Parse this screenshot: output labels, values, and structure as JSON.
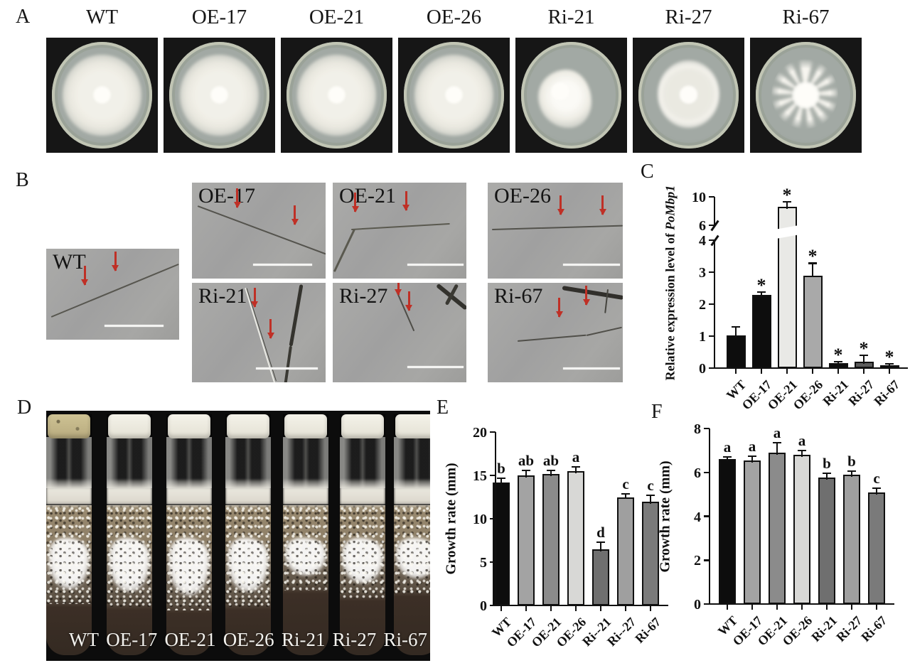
{
  "panels": {
    "a": {
      "label": "A",
      "strains": [
        "WT",
        "OE-17",
        "OE-21",
        "OE-26",
        "Ri-21",
        "Ri-27",
        "Ri-67"
      ]
    },
    "b": {
      "label": "B",
      "micrographs": [
        "WT",
        "OE-17",
        "OE-21",
        "OE-26",
        "Ri-21",
        "Ri-27",
        "Ri-67"
      ]
    },
    "c": {
      "label": "C"
    },
    "d": {
      "label": "D",
      "tube_labels": [
        "WT",
        "OE-17",
        "OE-21",
        "OE-26",
        "Ri-21",
        "Ri-27",
        "Ri-67"
      ]
    },
    "e": {
      "label": "E"
    },
    "f": {
      "label": "F"
    }
  },
  "colors": {
    "arrow_red": "#bf3026",
    "scale_bar": "#f4f4f2",
    "axis_black": "#101010"
  },
  "chart_data": [
    {
      "id": "C",
      "type": "bar",
      "ylabel": "Relative expression level of PoMbp1",
      "ylabel_plain": "Relative expression level of ",
      "ylabel_italic": "PoMbp1",
      "categories": [
        "WT",
        "OE-17",
        "OE-21",
        "OE-26",
        "Ri-21",
        "Ri-27",
        "Ri-67"
      ],
      "values": [
        1.02,
        2.28,
        8.6,
        2.9,
        0.15,
        0.2,
        0.1
      ],
      "errors": [
        0.27,
        0.1,
        0.7,
        0.38,
        0.05,
        0.2,
        0.04
      ],
      "sig_labels": [
        "",
        "*",
        "*",
        "*",
        "*",
        "*",
        "*"
      ],
      "bar_colors": [
        "#0d0d0d",
        "#0d0d0d",
        "#e9e9e6",
        "#a9a9a9",
        "#0d0d0d",
        "#5c5c5c",
        "#cdcdcd"
      ],
      "axis_break": {
        "lower_ticks": [
          0,
          1,
          2,
          3,
          4
        ],
        "upper_ticks": [
          6,
          10
        ],
        "lower_max": 4,
        "upper_min": 6,
        "upper_max": 10
      },
      "grid": false,
      "legend": null
    },
    {
      "id": "E",
      "type": "bar",
      "ylabel": "Growth rate (mm)",
      "categories": [
        "WT",
        "OE-17",
        "OE-21",
        "OE-26",
        "Ri--21",
        "Ri--27",
        "Ri-67"
      ],
      "values": [
        14.2,
        15.0,
        15.2,
        15.5,
        6.5,
        12.5,
        12.0
      ],
      "errors": [
        0.5,
        0.6,
        0.4,
        0.5,
        0.8,
        0.4,
        0.7
      ],
      "sig_labels": [
        "b",
        "ab",
        "ab",
        "a",
        "d",
        "c",
        "c"
      ],
      "bar_colors": [
        "#0d0d0d",
        "#a3a3a3",
        "#8b8b8b",
        "#d8d8d6",
        "#6f6f6f",
        "#9f9f9f",
        "#7a7a7a"
      ],
      "ylim": [
        0,
        20
      ],
      "yticks": [
        0,
        5,
        10,
        15,
        20
      ],
      "grid": false,
      "legend": null
    },
    {
      "id": "F",
      "type": "bar",
      "ylabel": "Growth rate (mm)",
      "categories": [
        "WT",
        "OE-17",
        "OE-21",
        "OE-26",
        "Ri-21",
        "Ri-27",
        "Ri-67"
      ],
      "values": [
        6.6,
        6.55,
        6.9,
        6.8,
        5.75,
        5.9,
        5.1
      ],
      "errors": [
        0.12,
        0.2,
        0.45,
        0.2,
        0.2,
        0.15,
        0.18
      ],
      "sig_labels": [
        "a",
        "a",
        "a",
        "a",
        "b",
        "b",
        "c"
      ],
      "bar_colors": [
        "#0d0d0d",
        "#a3a3a3",
        "#8b8b8b",
        "#d8d8d6",
        "#6f6f6f",
        "#9f9f9f",
        "#7a7a7a"
      ],
      "ylim": [
        0,
        8
      ],
      "yticks": [
        0,
        2,
        4,
        6,
        8
      ],
      "grid": false,
      "legend": null
    }
  ]
}
